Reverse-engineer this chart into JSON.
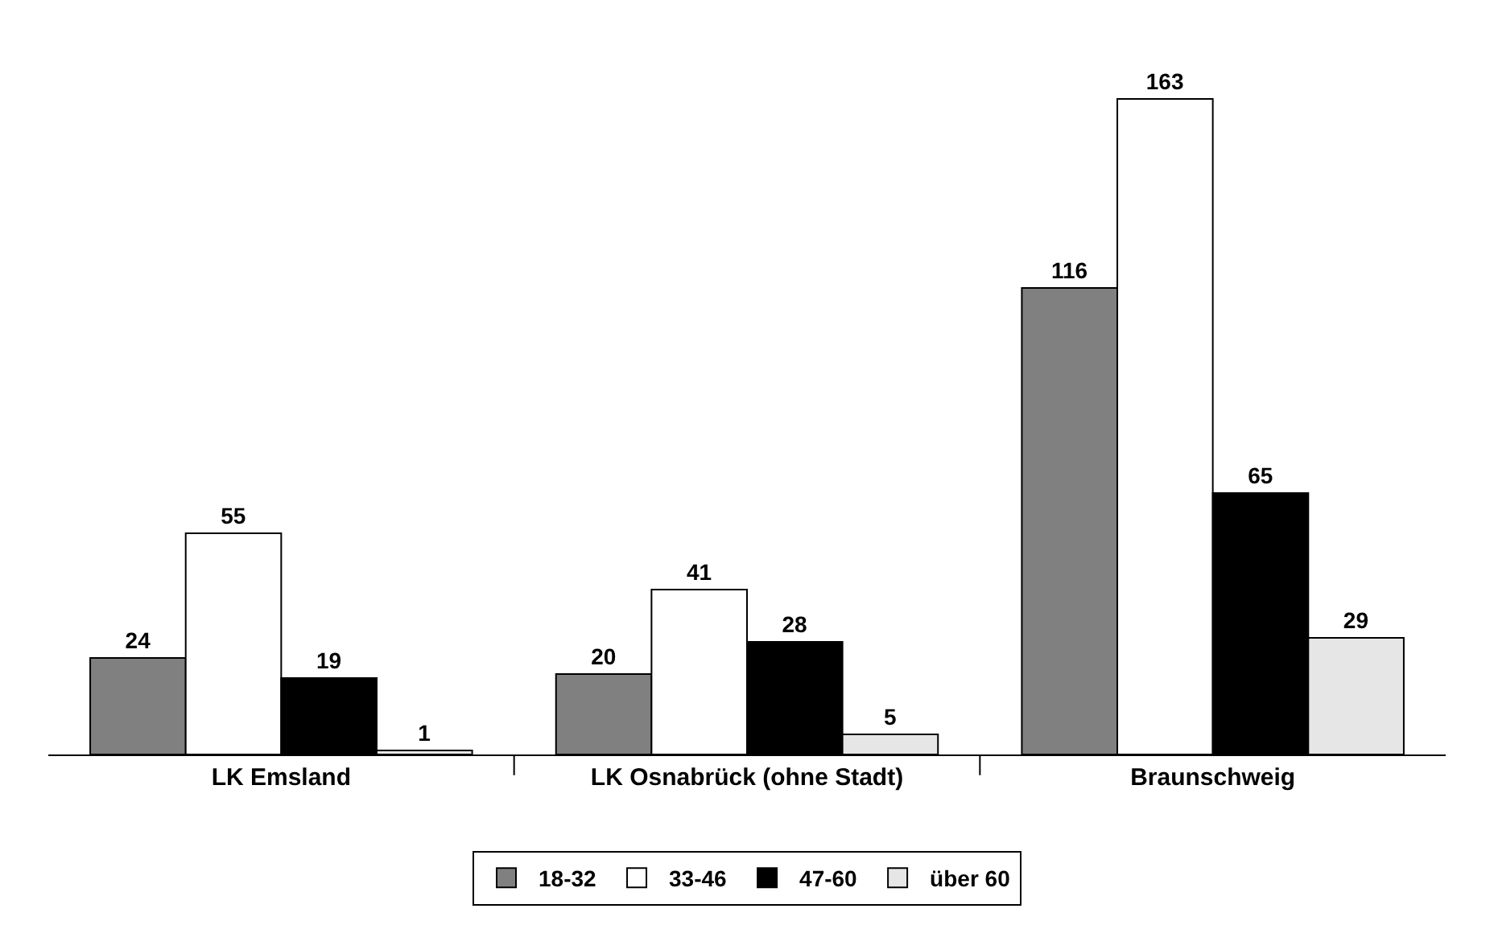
{
  "chart_data": {
    "type": "bar",
    "categories": [
      "LK Emsland",
      "LK Osnabrück (ohne Stadt)",
      "Braunschweig"
    ],
    "series": [
      {
        "name": "18-32",
        "color": "#808080",
        "values": [
          24,
          20,
          116
        ]
      },
      {
        "name": "33-46",
        "color": "#ffffff",
        "values": [
          55,
          41,
          163
        ]
      },
      {
        "name": "47-60",
        "color": "#000000",
        "values": [
          19,
          28,
          65
        ]
      },
      {
        "name": "über 60",
        "color": "#e6e6e6",
        "values": [
          1,
          5,
          29
        ]
      }
    ],
    "data_labels": true,
    "legend": "bottom"
  }
}
